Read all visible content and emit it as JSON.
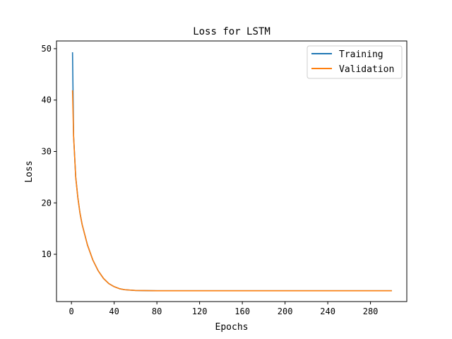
{
  "chart_data": {
    "type": "line",
    "title": "Loss for LSTM",
    "xlabel": "Epochs",
    "ylabel": "Loss",
    "xlim": [
      -14,
      314
    ],
    "ylim": [
      0.8,
      51.5
    ],
    "xticks": [
      0,
      40,
      80,
      120,
      160,
      200,
      240,
      280
    ],
    "yticks": [
      10,
      20,
      30,
      40,
      50
    ],
    "grid": false,
    "legend": "upper right",
    "series": [
      {
        "name": "Training",
        "color": "#1f77b4",
        "points": [
          [
            1,
            49.3
          ],
          [
            2,
            33.0
          ],
          [
            4,
            25.0
          ],
          [
            6,
            21.0
          ],
          [
            8,
            18.0
          ],
          [
            10,
            15.8
          ],
          [
            15,
            11.8
          ],
          [
            20,
            8.9
          ],
          [
            25,
            6.8
          ],
          [
            30,
            5.3
          ],
          [
            35,
            4.3
          ],
          [
            40,
            3.7
          ],
          [
            45,
            3.3
          ],
          [
            50,
            3.1
          ],
          [
            60,
            2.95
          ],
          [
            80,
            2.9
          ],
          [
            120,
            2.9
          ],
          [
            200,
            2.9
          ],
          [
            300,
            2.9
          ]
        ]
      },
      {
        "name": "Validation",
        "color": "#ff7f0e",
        "points": [
          [
            1,
            41.9
          ],
          [
            2,
            33.0
          ],
          [
            4,
            25.0
          ],
          [
            6,
            21.0
          ],
          [
            8,
            18.0
          ],
          [
            10,
            15.8
          ],
          [
            15,
            11.8
          ],
          [
            20,
            8.9
          ],
          [
            25,
            6.8
          ],
          [
            30,
            5.3
          ],
          [
            35,
            4.3
          ],
          [
            40,
            3.7
          ],
          [
            45,
            3.3
          ],
          [
            50,
            3.1
          ],
          [
            60,
            2.95
          ],
          [
            80,
            2.9
          ],
          [
            120,
            2.9
          ],
          [
            200,
            2.9
          ],
          [
            300,
            2.9
          ]
        ]
      }
    ]
  }
}
